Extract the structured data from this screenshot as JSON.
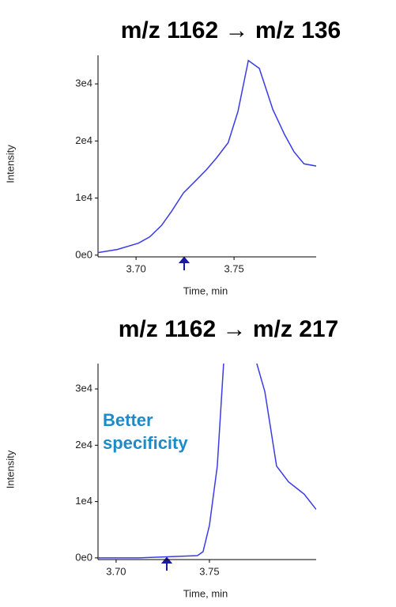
{
  "chart_data": [
    {
      "type": "line",
      "title": "m/z 1162 → m/z 136",
      "xlabel": "Time, min",
      "ylabel": "Intensity",
      "color": "#3a3ae8",
      "x": [
        3.68,
        3.6905,
        3.7012,
        3.707,
        3.713,
        3.718,
        3.7242,
        3.7306,
        3.736,
        3.741,
        3.747,
        3.752,
        3.7573,
        3.7629,
        3.7698,
        3.7758,
        3.7806,
        3.7857,
        3.792
      ],
      "values": [
        400,
        1000,
        2100,
        3200,
        5200,
        7600,
        10900,
        13100,
        15000,
        17000,
        19700,
        25200,
        34100,
        32700,
        25500,
        21100,
        18100,
        16000,
        15600
      ],
      "xlim": [
        3.6806,
        3.7919
      ],
      "ylim": [
        -300,
        35000
      ],
      "xticks": [
        {
          "value": 3.7,
          "label": "3.70"
        },
        {
          "value": 3.75,
          "label": "3.75"
        }
      ],
      "yticks": [
        {
          "value": 0,
          "label": "0e0"
        },
        {
          "value": 10000,
          "label": "1e4"
        },
        {
          "value": 20000,
          "label": "2e4"
        },
        {
          "value": 30000,
          "label": "3e4"
        }
      ]
    },
    {
      "type": "line",
      "title": "m/z 1162 → m/z 217",
      "xlabel": "Time, min",
      "ylabel": "Intensity",
      "color": "#3a3ae8",
      "annotation": "Better specificity",
      "x": [
        3.6903,
        3.7119,
        3.7436,
        3.7466,
        3.75,
        3.7542,
        3.7576,
        3.766,
        3.7754,
        3.7797,
        3.786,
        3.7924,
        3.8008,
        3.8072
      ],
      "values": [
        0,
        0,
        400,
        1100,
        5800,
        16300,
        34500,
        null,
        34500,
        29500,
        16300,
        13500,
        11300,
        8600
      ],
      "xlim": [
        3.6903,
        3.8072
      ],
      "ylim": [
        -300,
        34500
      ],
      "xticks": [
        {
          "value": 3.7,
          "label": "3.70"
        },
        {
          "value": 3.75,
          "label": "3.75"
        }
      ],
      "yticks": [
        {
          "value": 0,
          "label": "0e0"
        },
        {
          "value": 10000,
          "label": "1e4"
        },
        {
          "value": 20000,
          "label": "2e4"
        },
        {
          "value": 30000,
          "label": "3e4"
        }
      ]
    }
  ]
}
